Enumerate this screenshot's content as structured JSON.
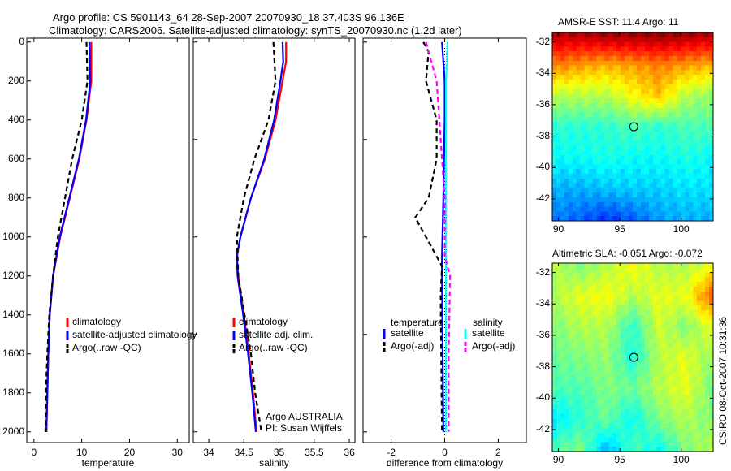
{
  "title_line1": "Argo profile: CS 5901143_64 28-Sep-2007 20070930_18 37.403S 96.136E",
  "title_line2": "Climatology: CARS2006. Satellite-adjusted climatology: synTS_20070930.nc (1.2d later)",
  "side_label": "CSIRO 08-Oct-2007 10:31:36",
  "chart_data": [
    {
      "type": "line",
      "id": "temp",
      "xlabel": "temperature",
      "xlim": [
        -1.5,
        32.5
      ],
      "ylim": [
        2055,
        -20
      ],
      "xticks": [
        0,
        10,
        20,
        30
      ],
      "yticks": [
        0,
        200,
        400,
        600,
        800,
        1000,
        1200,
        1400,
        1600,
        1800,
        2000
      ],
      "legend": {
        "placement": "bottom-right",
        "title": "",
        "entries": [
          "climatology",
          "satellite-adjusted climatology",
          "Argo(..raw -QC)"
        ]
      },
      "series": [
        {
          "name": "climatology",
          "color": "#ff0000",
          "dash": "",
          "depth": [
            0,
            200,
            400,
            600,
            800,
            1000,
            1200,
            1400,
            1600,
            1800,
            2000
          ],
          "values": [
            12,
            12,
            11,
            9.5,
            7.5,
            5.5,
            4,
            3.3,
            3,
            2.8,
            2.6
          ]
        },
        {
          "name": "satellite-adjusted climatology",
          "color": "#0000ff",
          "dash": "",
          "depth": [
            0,
            200,
            400,
            600,
            800,
            1000,
            1200,
            1400,
            1600,
            1800,
            2000
          ],
          "values": [
            11.6,
            11.8,
            10.9,
            9.4,
            7.4,
            5.4,
            4,
            3.3,
            3,
            2.8,
            2.6
          ]
        },
        {
          "name": "Argo(..raw -QC)",
          "color": "#000000",
          "dash": "6,4",
          "depth": [
            0,
            200,
            400,
            600,
            800,
            1000,
            1200,
            1400,
            1600,
            1800,
            2000
          ],
          "values": [
            11,
            11.2,
            10,
            8,
            6.5,
            5,
            4,
            3.2,
            2.8,
            2.5,
            2.4
          ]
        }
      ]
    },
    {
      "type": "line",
      "id": "sal",
      "xlabel": "salinity",
      "xlim": [
        33.78,
        36.08
      ],
      "ylim": [
        2055,
        -20
      ],
      "xticks": [
        34,
        34.5,
        35,
        35.5,
        36
      ],
      "yticks": [],
      "legend": {
        "placement": "bottom-right",
        "title": "",
        "entries": [
          "climatology",
          "satellite adj. clim.",
          "Argo(..raw -QC)"
        ]
      },
      "annotations": [
        "Argo AUSTRALIA",
        "PI: Susan Wijffels"
      ],
      "series": [
        {
          "name": "climatology",
          "color": "#ff0000",
          "dash": "",
          "depth": [
            0,
            100,
            200,
            400,
            600,
            800,
            1000,
            1100,
            1200,
            1400,
            1600,
            1800,
            2000
          ],
          "values": [
            35.1,
            35.1,
            35.05,
            34.95,
            34.8,
            34.6,
            34.45,
            34.4,
            34.42,
            34.5,
            34.57,
            34.63,
            34.68
          ]
        },
        {
          "name": "satellite adj. clim.",
          "color": "#0000ff",
          "dash": "",
          "depth": [
            0,
            100,
            200,
            400,
            600,
            800,
            1000,
            1100,
            1200,
            1400,
            1600,
            1800,
            2000
          ],
          "values": [
            35.05,
            35.06,
            35.02,
            34.93,
            34.79,
            34.6,
            34.45,
            34.4,
            34.41,
            34.49,
            34.56,
            34.62,
            34.67
          ]
        },
        {
          "name": "Argo(..raw -QC)",
          "color": "#000000",
          "dash": "6,4",
          "depth": [
            0,
            200,
            400,
            600,
            800,
            1000,
            1200,
            1600,
            1800,
            2000
          ],
          "values": [
            34.92,
            34.95,
            34.85,
            34.65,
            34.5,
            34.4,
            34.42,
            34.6,
            34.66,
            34.75
          ]
        }
      ]
    },
    {
      "type": "line",
      "id": "diff",
      "xlabel": "difference from climatology",
      "xlim": [
        -3.05,
        3.05
      ],
      "ylim": [
        2055,
        -20
      ],
      "xticks": [
        -2,
        0,
        2
      ],
      "yticks": [],
      "legend": {
        "placement": "bottom",
        "titles": [
          "temperature",
          "salinity"
        ],
        "entries": [
          "satellite",
          "Argo(-adj)",
          "satellite",
          "Argo(-adj)"
        ]
      },
      "series": [
        {
          "name": "temperature satellite",
          "color": "#0000ff",
          "dash": "",
          "depth": [
            0,
            100,
            200,
            400,
            800,
            1100,
            1200,
            2000
          ],
          "values": [
            -0.1,
            -0.05,
            0,
            0,
            -0.05,
            -0.1,
            -0.1,
            -0.05
          ]
        },
        {
          "name": "temperature Argo(-adj)",
          "color": "#000000",
          "dash": "6,4",
          "depth": [
            0,
            50,
            200,
            400,
            600,
            800,
            900,
            1000,
            1150,
            1300,
            2000
          ],
          "values": [
            -0.8,
            -0.6,
            -0.7,
            -0.3,
            -0.3,
            -0.6,
            -1.1,
            -0.7,
            -0.1,
            -0.15,
            -0.1
          ]
        },
        {
          "name": "salinity satellite",
          "color": "#00ffff",
          "dash": "",
          "depth": [
            0,
            200,
            1000,
            2000
          ],
          "values": [
            0.1,
            0.05,
            0.05,
            0.05
          ]
        },
        {
          "name": "salinity Argo(-adj)",
          "color": "#ff00ff",
          "dash": "6,4",
          "depth": [
            0,
            200,
            400,
            600,
            800,
            1100,
            1200,
            1600,
            2000
          ],
          "values": [
            -0.7,
            -0.3,
            -0.2,
            -0.1,
            0,
            0,
            0.2,
            0.15,
            0.15
          ]
        }
      ]
    },
    {
      "type": "heatmap",
      "id": "sst",
      "title": "AMSR-E SST: 11.4  Argo: 11",
      "xlim": [
        89.5,
        102.6
      ],
      "ylim": [
        -43.4,
        -31.4
      ],
      "xticks": [
        90,
        95,
        100
      ],
      "yticks": [
        -32,
        -34,
        -36,
        -38,
        -40,
        -42
      ],
      "marker": {
        "lon": 96.136,
        "lat": -37.403
      },
      "grid": [
        [
          0.95,
          0.95,
          0.97,
          0.97,
          0.98,
          0.97,
          0.95
        ],
        [
          0.75,
          0.72,
          0.7,
          0.72,
          0.75,
          0.72,
          0.7
        ],
        [
          0.55,
          0.55,
          0.55,
          0.62,
          0.68,
          0.55,
          0.52
        ],
        [
          0.42,
          0.42,
          0.42,
          0.45,
          0.42,
          0.45,
          0.45
        ],
        [
          0.38,
          0.38,
          0.4,
          0.38,
          0.38,
          0.4,
          0.38
        ],
        [
          0.3,
          0.3,
          0.32,
          0.33,
          0.33,
          0.35,
          0.35
        ],
        [
          0.25,
          0.22,
          0.18,
          0.22,
          0.28,
          0.3,
          0.3
        ]
      ]
    },
    {
      "type": "heatmap",
      "id": "sla",
      "title": "Altimetric SLA: -0.051  Argo: -0.072",
      "xlim": [
        89.5,
        102.6
      ],
      "ylim": [
        -43.4,
        -31.4
      ],
      "xticks": [
        90,
        95,
        100
      ],
      "yticks": [
        -32,
        -34,
        -36,
        -38,
        -40,
        -42
      ],
      "marker": {
        "lon": 96.136,
        "lat": -37.403
      },
      "grid": [
        [
          0.55,
          0.5,
          0.55,
          0.62,
          0.55,
          0.55,
          0.6
        ],
        [
          0.55,
          0.6,
          0.62,
          0.55,
          0.6,
          0.6,
          0.78
        ],
        [
          0.5,
          0.55,
          0.55,
          0.42,
          0.58,
          0.5,
          0.6
        ],
        [
          0.48,
          0.5,
          0.52,
          0.4,
          0.55,
          0.6,
          0.52
        ],
        [
          0.45,
          0.45,
          0.5,
          0.48,
          0.55,
          0.6,
          0.5
        ],
        [
          0.35,
          0.42,
          0.48,
          0.38,
          0.5,
          0.55,
          0.5
        ],
        [
          0.45,
          0.5,
          0.3,
          0.45,
          0.38,
          0.5,
          0.55
        ]
      ]
    }
  ]
}
